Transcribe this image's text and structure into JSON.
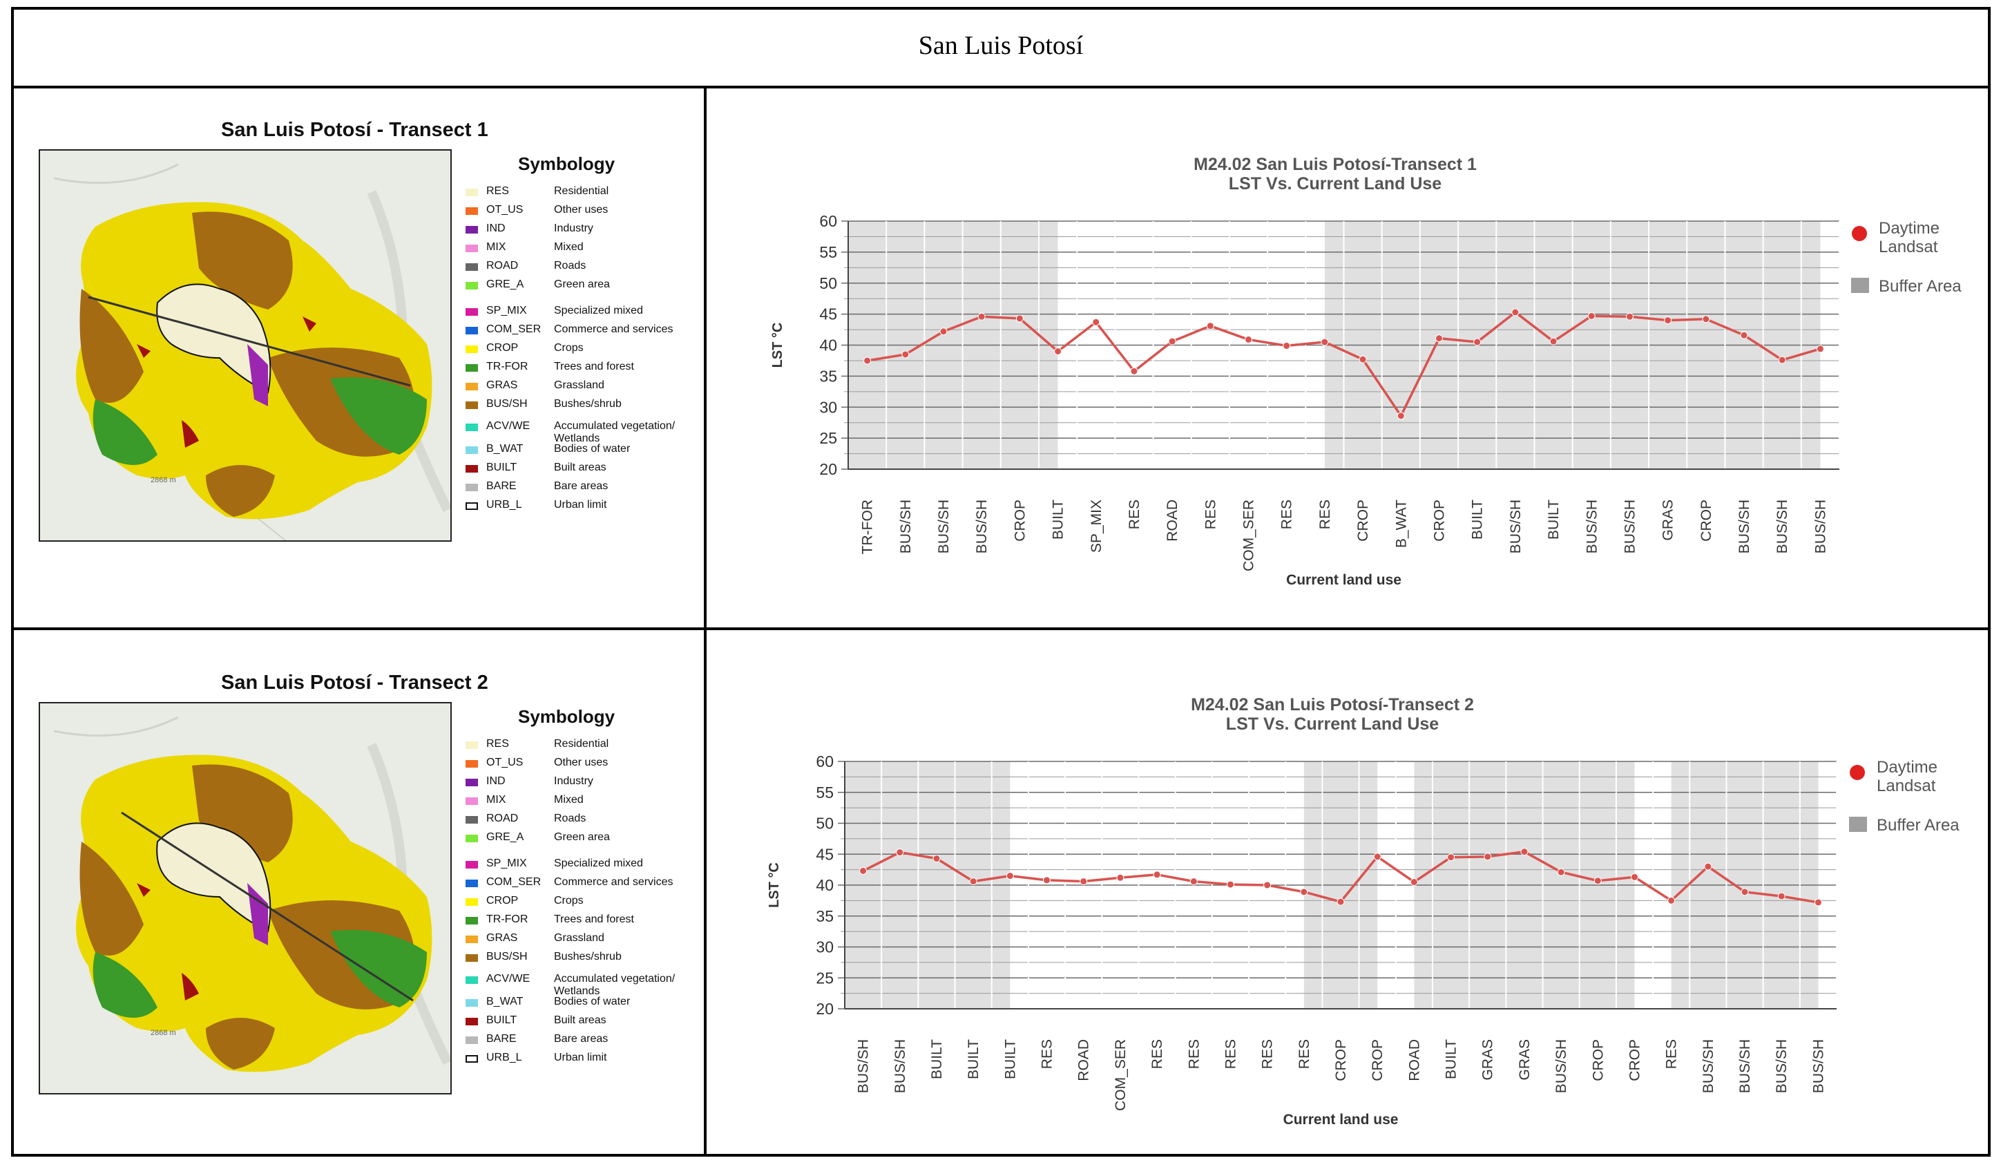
{
  "page_title": "San Luis Potosí",
  "colors": {
    "line": "#d9534f",
    "line_dark": "#b92b2b",
    "buffer": "#e0e0e0",
    "legend_buffer": "#9e9e9e",
    "marker": "#e02020"
  },
  "legend_items": [
    {
      "code": "RES",
      "desc": "Residential",
      "color": "#f6f3c6",
      "outline": false,
      "icon": "swatch"
    },
    {
      "code": "OT_US",
      "desc": "Other uses",
      "color": "#f26b21",
      "outline": false,
      "icon": "swatch"
    },
    {
      "code": "IND",
      "desc": "Industry",
      "color": "#7b1fa2",
      "outline": false,
      "icon": "swatch"
    },
    {
      "code": "MIX",
      "desc": "Mixed",
      "color": "#f08ad8",
      "outline": false,
      "icon": "swatch"
    },
    {
      "code": "ROAD",
      "desc": "Roads",
      "color": "#666666",
      "outline": false,
      "icon": "swatch"
    },
    {
      "code": "GRE_A",
      "desc": "Green area",
      "color": "#7ee83a",
      "outline": false,
      "icon": "swatch"
    },
    {
      "code": "SP_MIX",
      "desc": "Specialized mixed",
      "color": "#d81b9c",
      "outline": false,
      "icon": "swatch"
    },
    {
      "code": "COM_SER",
      "desc": "Commerce and services",
      "color": "#1565d8",
      "outline": false,
      "icon": "swatch"
    },
    {
      "code": "CROP",
      "desc": "Crops",
      "color": "#fff200",
      "outline": false,
      "icon": "swatch"
    },
    {
      "code": "TR-FOR",
      "desc": "Trees and forest",
      "color": "#3a9a2a",
      "outline": false,
      "icon": "swatch"
    },
    {
      "code": "GRAS",
      "desc": "Grassland",
      "color": "#f2a624",
      "outline": false,
      "icon": "swatch"
    },
    {
      "code": "BUS/SH",
      "desc": "Bushes/shrub",
      "color": "#a56b12",
      "outline": false,
      "icon": "swatch"
    },
    {
      "code": "ACV/WE",
      "desc": "Accumulated vegetation/",
      "desc2": "Wetlands",
      "color": "#28d8b4",
      "outline": false,
      "icon": "swatch"
    },
    {
      "code": "B_WAT",
      "desc": "Bodies of water",
      "color": "#7fd8e8",
      "outline": false,
      "icon": "swatch"
    },
    {
      "code": "BUILT",
      "desc": "Built areas",
      "color": "#a01010",
      "outline": false,
      "icon": "swatch"
    },
    {
      "code": "BARE",
      "desc": "Bare areas",
      "color": "#b8b8b8",
      "outline": false,
      "icon": "swatch"
    },
    {
      "code": "URB_L",
      "desc": "Urban limit",
      "color": "#ffffff",
      "outline": true,
      "icon": "swatch"
    }
  ],
  "maps": [
    {
      "title": "San Luis Potosí - Transect 1",
      "symbology_title": "Symbology",
      "scale_label": "2868 m"
    },
    {
      "title": "San Luis Potosí - Transect 2",
      "symbology_title": "Symbology",
      "scale_label": "2868 m"
    }
  ],
  "chart_data": [
    {
      "type": "line",
      "title": "M24.02 San Luis Potosí-Transect 1",
      "subtitle": "LST Vs. Current Land Use",
      "xlabel": "Current land use",
      "ylabel": "LST °C",
      "ylim": [
        20,
        60
      ],
      "yticks": [
        20,
        25,
        30,
        35,
        40,
        45,
        50,
        55,
        60
      ],
      "categories": [
        "TR-FOR",
        "BUS/SH",
        "BUS/SH",
        "BUS/SH",
        "CROP",
        "BUILT",
        "SP_MIX",
        "RES",
        "ROAD",
        "RES",
        "COM_SER",
        "RES",
        "RES",
        "CROP",
        "B_WAT",
        "CROP",
        "BUILT",
        "BUS/SH",
        "BUILT",
        "BUS/SH",
        "BUS/SH",
        "GRAS",
        "CROP",
        "BUS/SH",
        "BUS/SH",
        "BUS/SH"
      ],
      "series": [
        {
          "name": "Daytime Landsat",
          "values": [
            37.5,
            38.5,
            42.2,
            44.6,
            44.3,
            39.0,
            43.7,
            35.8,
            40.6,
            43.1,
            40.9,
            39.9,
            40.5,
            37.7,
            28.6,
            41.1,
            40.5,
            45.3,
            40.6,
            44.7,
            44.6,
            44.0,
            44.2,
            41.6,
            37.6,
            39.4
          ]
        }
      ],
      "buffer_ranges": [
        [
          0,
          5.5
        ],
        [
          12.5,
          25.5
        ]
      ],
      "legend": {
        "marker_label_1": "Daytime",
        "marker_label_2": "Landsat",
        "buffer_label": "Buffer Area",
        "placement": "right"
      }
    },
    {
      "type": "line",
      "title": "M24.02 San Luis Potosí-Transect 2",
      "subtitle": "LST Vs. Current Land Use",
      "xlabel": "Current land use",
      "ylabel": "LST °C",
      "ylim": [
        20,
        60
      ],
      "yticks": [
        20,
        25,
        30,
        35,
        40,
        45,
        50,
        55,
        60
      ],
      "categories": [
        "BUS/SH",
        "BUS/SH",
        "BUILT",
        "BUILT",
        "BUILT",
        "RES",
        "ROAD",
        "COM_SER",
        "RES",
        "RES",
        "RES",
        "RES",
        "RES",
        "CROP",
        "CROP",
        "ROAD",
        "BUILT",
        "GRAS",
        "GRAS",
        "BUS/SH",
        "CROP",
        "CROP",
        "RES",
        "BUS/SH",
        "BUS/SH",
        "BUS/SH",
        "BUS/SH"
      ],
      "series": [
        {
          "name": "Daytime Landsat",
          "values": [
            42.3,
            45.3,
            44.3,
            40.6,
            41.5,
            40.8,
            40.6,
            41.2,
            41.7,
            40.6,
            40.1,
            40.0,
            38.9,
            37.3,
            44.6,
            40.5,
            44.5,
            44.6,
            45.4,
            42.1,
            40.7,
            41.3,
            37.5,
            43.0,
            38.9,
            38.2,
            37.2
          ]
        }
      ],
      "buffer_ranges": [
        [
          0,
          4.5
        ],
        [
          12.5,
          14.5
        ],
        [
          15.5,
          21.5
        ],
        [
          22.5,
          26.5
        ]
      ],
      "legend": {
        "marker_label_1": "Daytime",
        "marker_label_2": "Landsat",
        "buffer_label": "Buffer Area",
        "placement": "right"
      }
    }
  ]
}
